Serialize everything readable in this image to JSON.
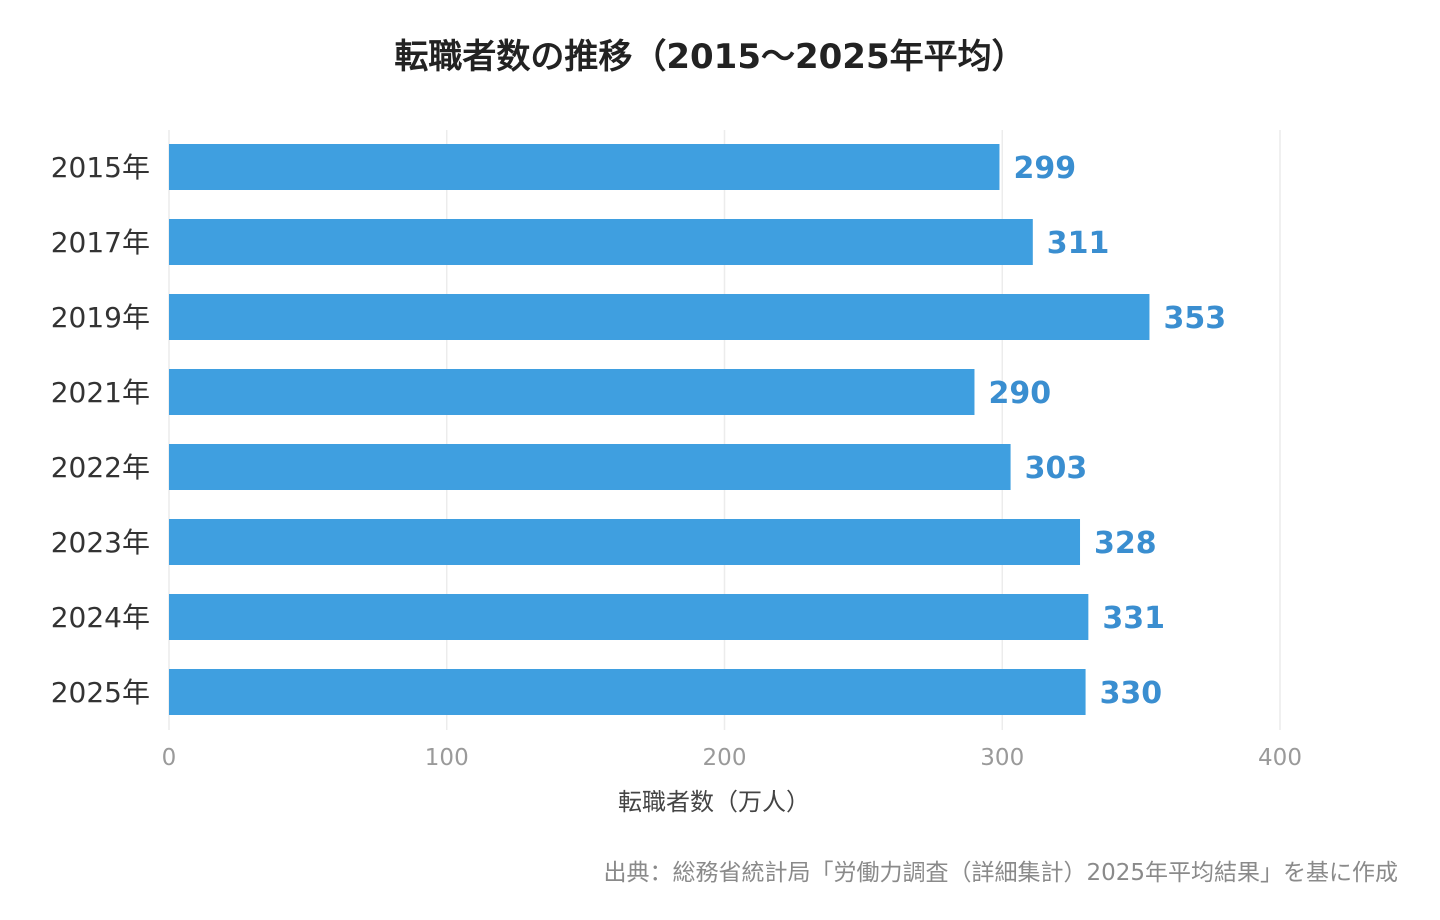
{
  "chart_data": {
    "type": "bar",
    "orientation": "horizontal",
    "title": "転職者数の推移（2015〜2025年平均）",
    "categories": [
      "2015年",
      "2017年",
      "2019年",
      "2021年",
      "2022年",
      "2023年",
      "2024年",
      "2025年"
    ],
    "values": [
      299,
      311,
      353,
      290,
      303,
      328,
      331,
      330
    ],
    "xlabel": "転職者数（万人）",
    "ylabel": "",
    "xlim": [
      0,
      400
    ],
    "xticks": [
      0,
      100,
      200,
      300,
      400
    ],
    "grid": true,
    "data_labels": true,
    "bar_color": "#3f9fe0",
    "label_color": "#3a8ed0",
    "source": "出典：総務省統計局「労働力調査（詳細集計）2025年平均結果」を基に作成"
  }
}
